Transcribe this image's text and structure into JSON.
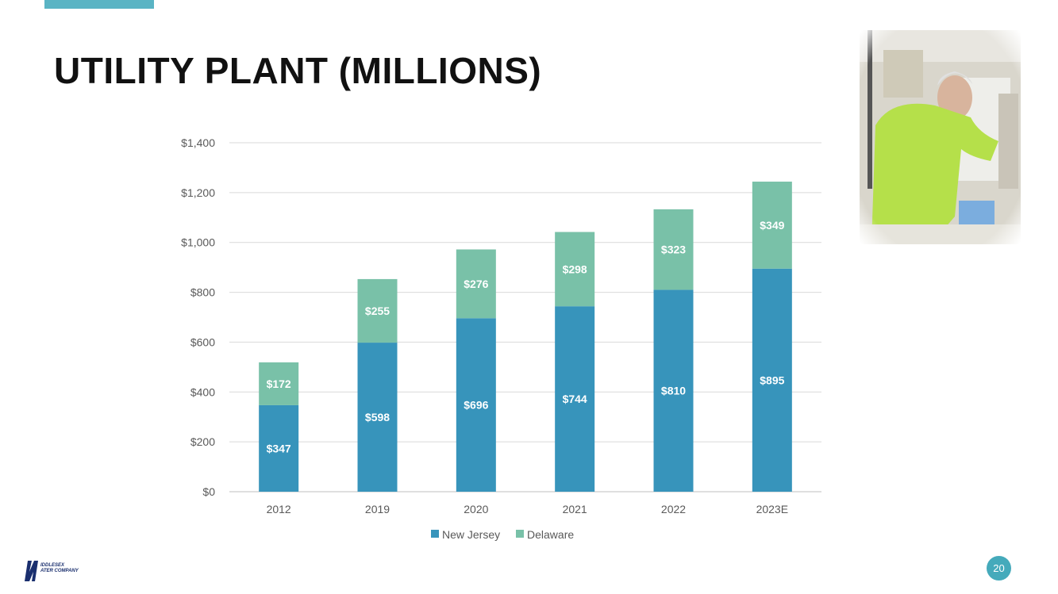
{
  "slide": {
    "title": "UTILITY PLANT (MILLIONS)",
    "page_number": "20",
    "logo_text_line1": "IDDLESEX",
    "logo_text_line2": "ATER COMPANY"
  },
  "photo": {
    "icon": "lab-technician-photo"
  },
  "colors": {
    "accent": "#5ab4c4",
    "new_jersey": "#3794bb",
    "delaware": "#79c1a8",
    "page_badge": "#45aabb",
    "logo": "#1a2f6e"
  },
  "chart_data": {
    "type": "bar",
    "stacked": true,
    "title": "",
    "categories": [
      "2012",
      "2019",
      "2020",
      "2021",
      "2022",
      "2023E"
    ],
    "series": [
      {
        "name": "New Jersey",
        "values": [
          347,
          598,
          696,
          744,
          810,
          895
        ],
        "labels": [
          "$347",
          "$598",
          "$696",
          "$744",
          "$810",
          "$895"
        ]
      },
      {
        "name": "Delaware",
        "values": [
          172,
          255,
          276,
          298,
          323,
          349
        ],
        "labels": [
          "$172",
          "$255",
          "$276",
          "$298",
          "$323",
          "$349"
        ]
      }
    ],
    "y_ticks": [
      0,
      200,
      400,
      600,
      800,
      1000,
      1200,
      1400
    ],
    "y_tick_labels": [
      "$0",
      "$200",
      "$400",
      "$600",
      "$800",
      "$1,000",
      "$1,200",
      "$1,400"
    ],
    "ylim": [
      0,
      1400
    ],
    "grid": true,
    "legend": "bottom"
  }
}
